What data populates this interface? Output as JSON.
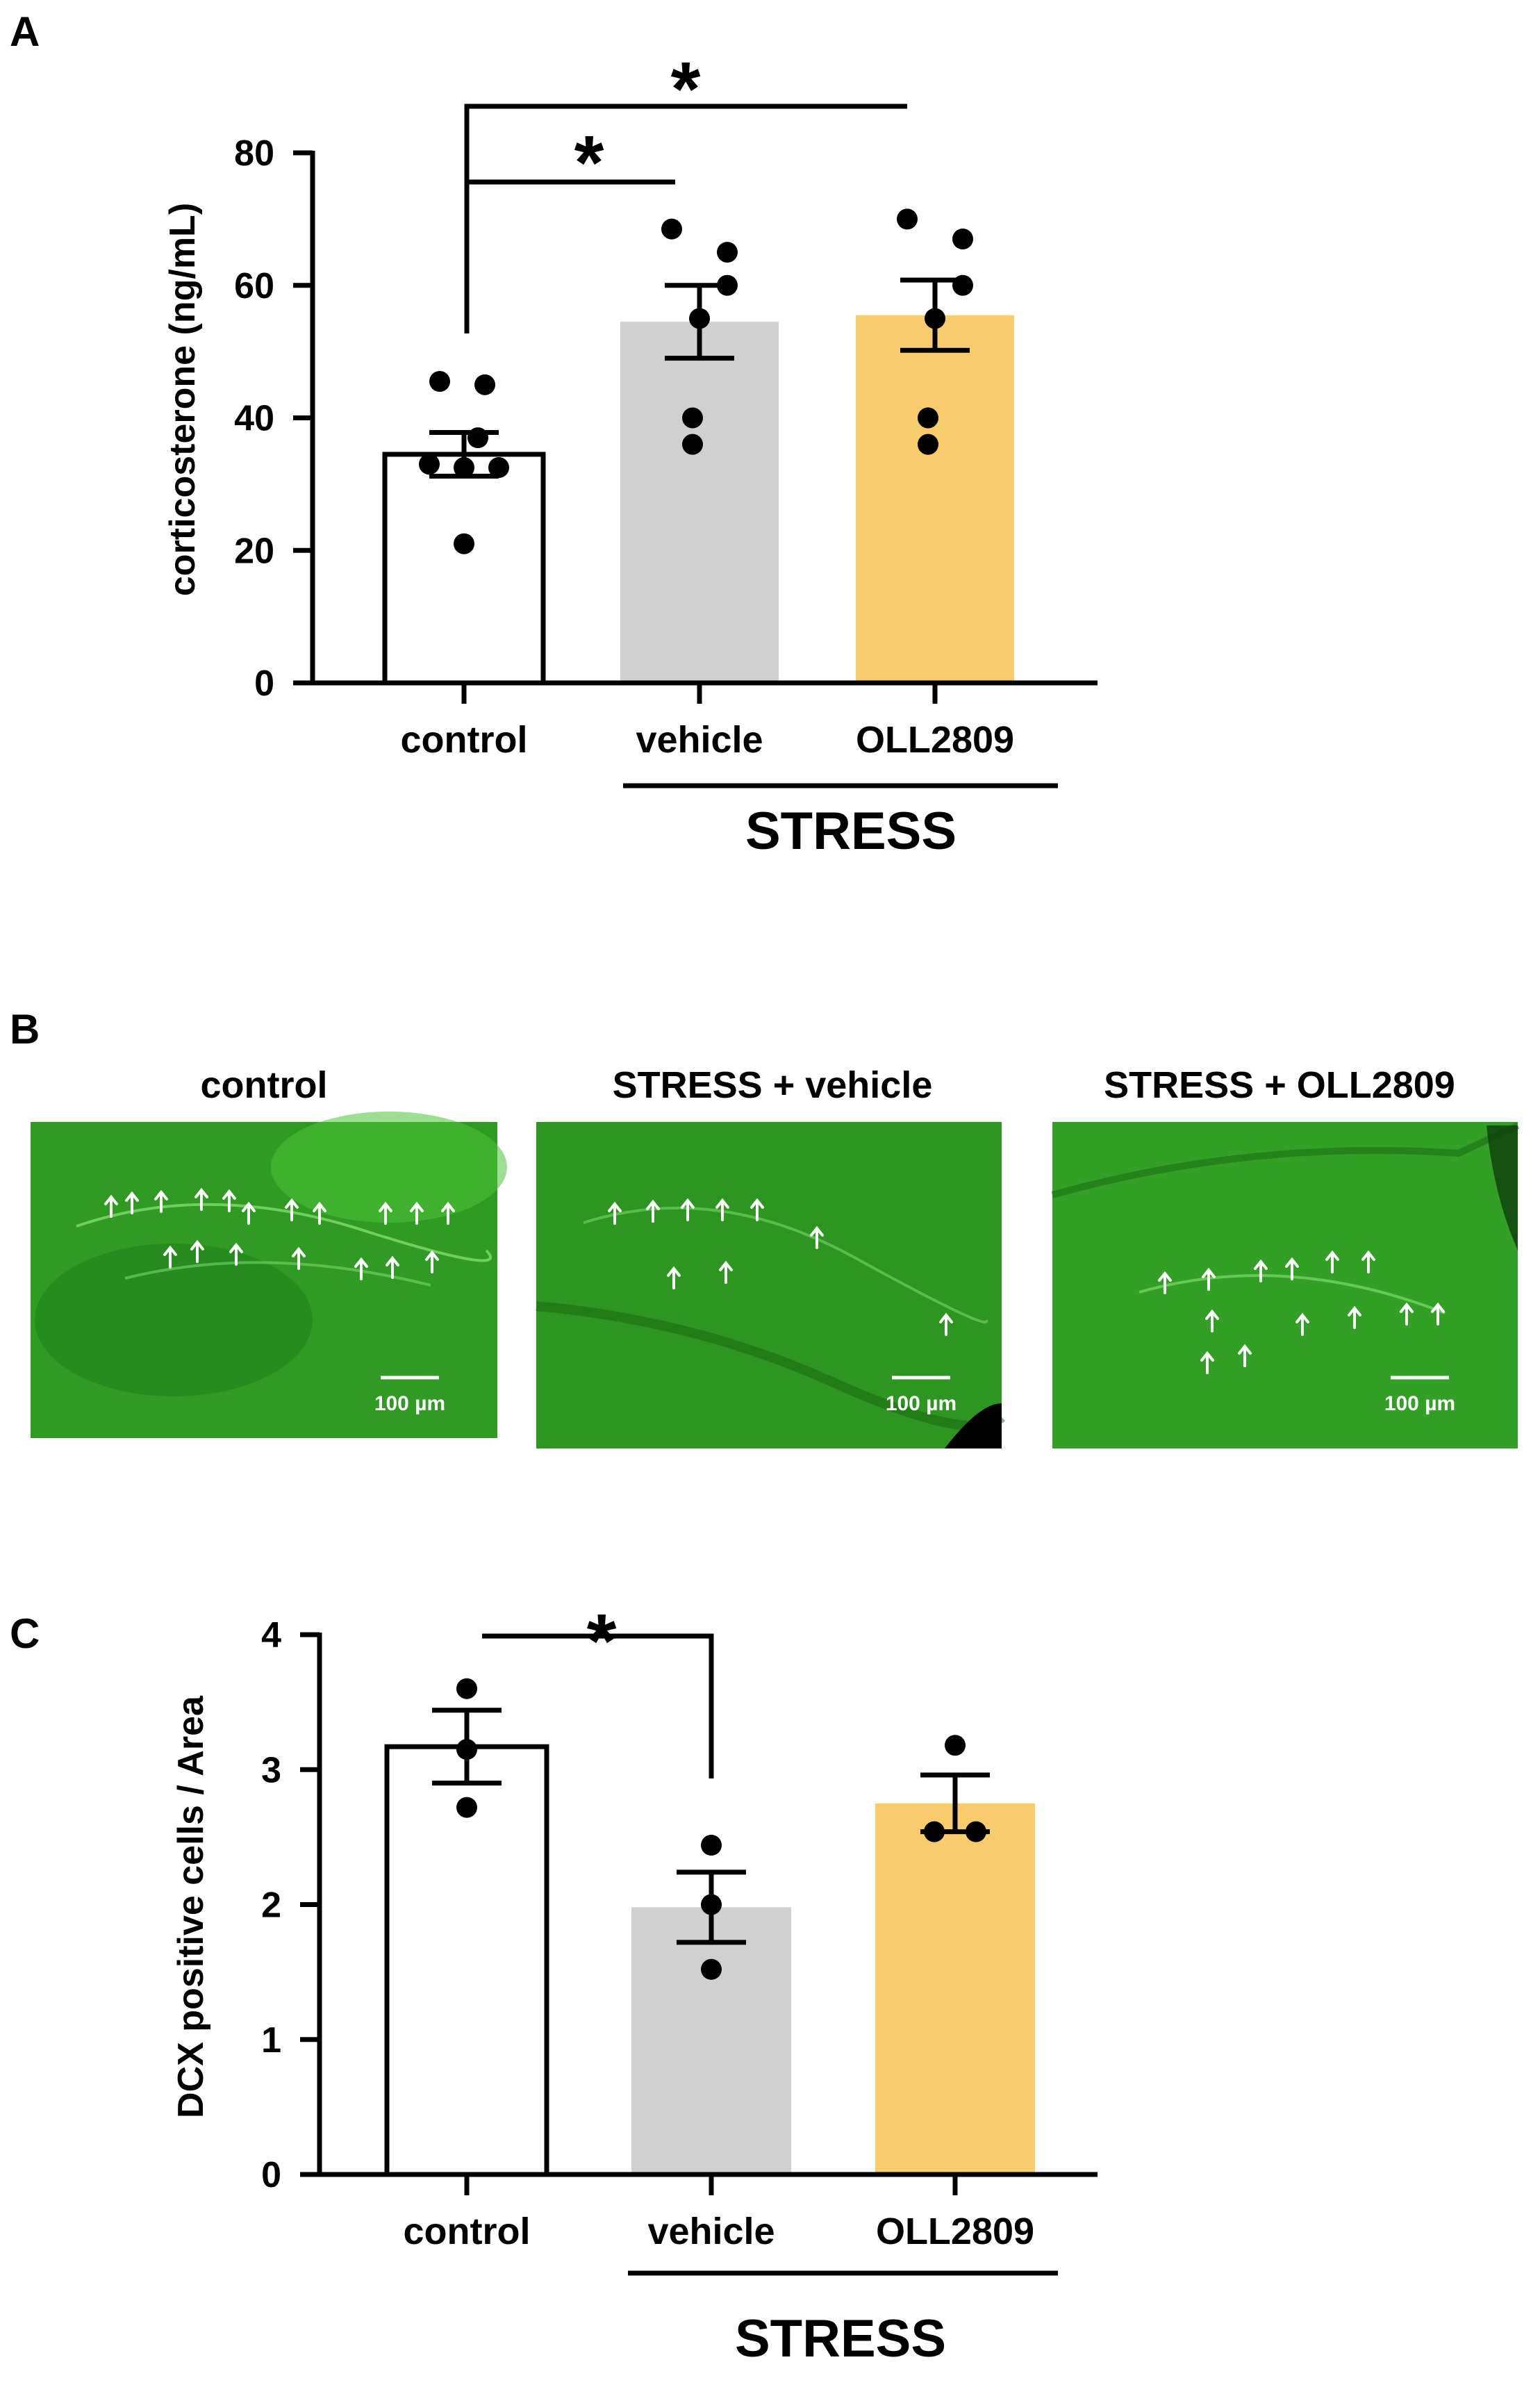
{
  "panels": {
    "a": {
      "letter": "A"
    },
    "b": {
      "letter": "B",
      "images": [
        {
          "title": "control",
          "scale_label": "100 µm"
        },
        {
          "title": "STRESS + vehicle",
          "scale_label": "100 µm"
        },
        {
          "title": "STRESS + OLL2809",
          "scale_label": "100 µm"
        }
      ]
    },
    "c": {
      "letter": "C"
    }
  },
  "colors": {
    "control": "#ffffff",
    "vehicle": "#d0d0d0",
    "oll2809": "#f8cc6c",
    "tissue": "#2e9a22",
    "arrow": "#ffffff"
  },
  "chart_data": [
    {
      "type": "bar",
      "panel": "A",
      "ylabel": "corticosterone (ng/mL)",
      "ylim": [
        0,
        80
      ],
      "yticks": [
        0,
        20,
        40,
        60,
        80
      ],
      "categories": [
        "control",
        "vehicle",
        "OLL2809"
      ],
      "group_label": "STRESS",
      "significance_marker": "*",
      "significance": [
        {
          "from": "control",
          "to": "vehicle",
          "label": "*"
        },
        {
          "from": "control",
          "to": "OLL2809",
          "label": "*"
        }
      ],
      "series": [
        {
          "values": [
            34.5,
            54.5,
            55.5
          ],
          "sem": [
            3.3,
            5.5,
            5.3
          ],
          "points": [
            [
              45.5,
              45,
              37,
              33,
              32.5,
              32.5,
              21
            ],
            [
              68.5,
              65,
              60,
              55,
              40,
              36
            ],
            [
              70,
              67,
              60,
              55,
              40,
              36
            ]
          ]
        }
      ]
    },
    {
      "type": "bar",
      "panel": "C",
      "ylabel": "DCX positive cells / Area",
      "ylim": [
        0,
        4
      ],
      "yticks": [
        0,
        1,
        2,
        3,
        4
      ],
      "categories": [
        "control",
        "vehicle",
        "OLL2809"
      ],
      "group_label": "STRESS",
      "significance_marker": "*",
      "significance": [
        {
          "from": "control",
          "to": "vehicle",
          "label": "*"
        }
      ],
      "series": [
        {
          "values": [
            3.17,
            1.98,
            2.75
          ],
          "sem": [
            0.27,
            0.26,
            0.21
          ],
          "points": [
            [
              3.6,
              3.15,
              2.72
            ],
            [
              2.44,
              2.0,
              1.52
            ],
            [
              3.18,
              2.54,
              2.54
            ]
          ]
        }
      ]
    }
  ]
}
